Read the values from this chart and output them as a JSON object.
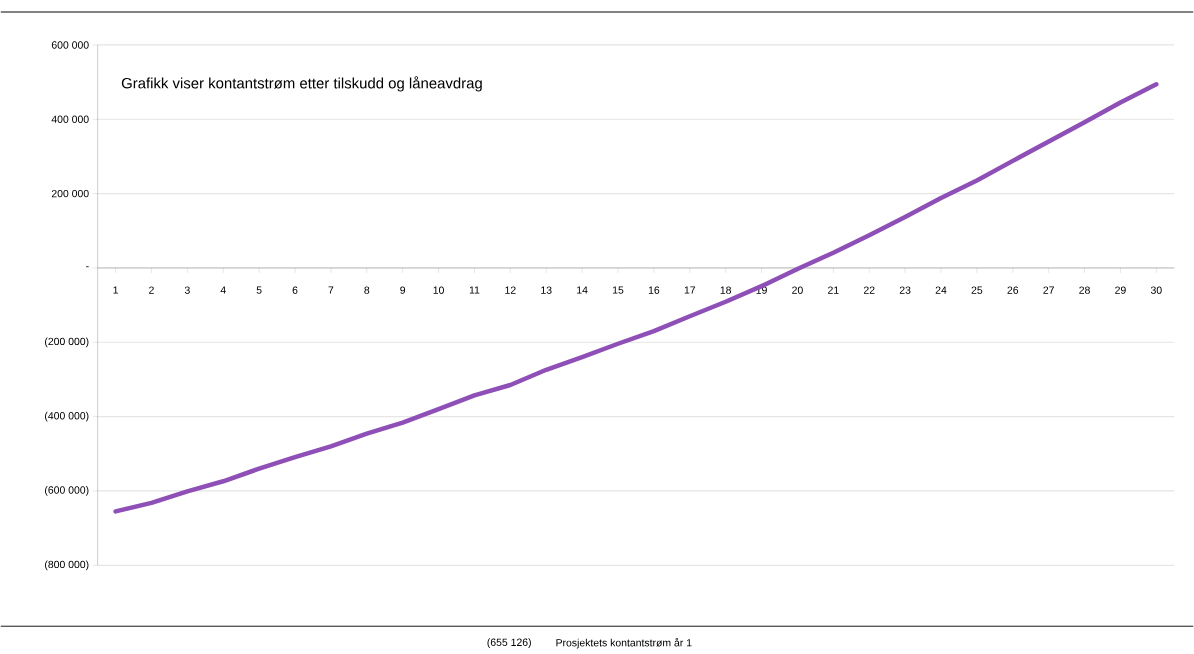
{
  "chart_data": {
    "type": "line",
    "title": "Grafikk viser kontantstrøm etter tilskudd og låneavdrag",
    "categories": [
      "1",
      "2",
      "3",
      "4",
      "5",
      "6",
      "7",
      "8",
      "9",
      "10",
      "11",
      "12",
      "13",
      "14",
      "15",
      "16",
      "17",
      "18",
      "19",
      "20",
      "21",
      "22",
      "23",
      "24",
      "25",
      "26",
      "27",
      "28",
      "29",
      "30"
    ],
    "series": [
      {
        "color": "#8e4fb7",
        "values": [
          -655126,
          -632000,
          -601000,
          -574000,
          -540000,
          -509000,
          -480000,
          -446000,
          -416000,
          -380000,
          -343000,
          -315000,
          -274000,
          -240000,
          -204000,
          -170000,
          -130000,
          -91000,
          -49000,
          -3000,
          41000,
          88000,
          137000,
          188000,
          235000,
          288000,
          340000,
          392000,
          445000,
          494000
        ]
      }
    ],
    "ylim": [
      -800000,
      600000
    ],
    "yticks": [
      {
        "value": -800000,
        "label": "(800 000)"
      },
      {
        "value": -600000,
        "label": "(600 000)"
      },
      {
        "value": -400000,
        "label": "(400 000)"
      },
      {
        "value": -200000,
        "label": "(200 000)"
      },
      {
        "value": 0,
        "label": "-"
      },
      {
        "value": 200000,
        "label": "200 000"
      },
      {
        "value": 400000,
        "label": "400 000"
      },
      {
        "value": 600000,
        "label": "600 000"
      }
    ],
    "grid": "y",
    "marker": "none",
    "line_style": "solid",
    "annotations": [
      "(655 126)",
      "Prosjektets kontantstrøm år 1"
    ]
  }
}
